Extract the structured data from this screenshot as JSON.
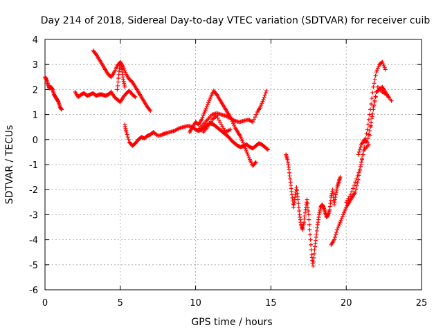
{
  "chart_data": {
    "type": "scatter",
    "title": "Day 214 of 2018, Sidereal Day-to-day VTEC variation (SDTVAR) for receiver cuib",
    "xlabel": "GPS time / hours",
    "ylabel": "SDTVAR / TECUs",
    "xlim": [
      0,
      25
    ],
    "ylim": [
      -6,
      4
    ],
    "x_ticks": [
      "0",
      "5",
      "10",
      "15",
      "20",
      "25"
    ],
    "y_ticks": [
      "-6",
      "-5",
      "-4",
      "-3",
      "-2",
      "-1",
      "0",
      "1",
      "2",
      "3",
      "4"
    ],
    "grid": true,
    "marker": "plus",
    "color": "#ff0000",
    "series": [
      {
        "x": [
          0.0,
          0.1,
          0.2,
          0.3,
          0.4,
          0.5,
          0.6,
          0.7,
          0.8,
          0.9,
          1.0,
          1.1
        ],
        "y": [
          2.5,
          2.4,
          2.2,
          2.05,
          2.1,
          2.0,
          1.8,
          1.7,
          1.6,
          1.5,
          1.3,
          1.2
        ]
      },
      {
        "x": [
          2.0,
          2.2,
          2.4,
          2.6,
          2.8,
          3.0,
          3.2,
          3.4,
          3.6,
          3.8,
          4.0,
          4.2,
          4.4,
          4.6,
          4.8,
          5.0,
          5.2,
          5.4,
          5.6,
          5.8,
          6.0
        ],
        "y": [
          1.9,
          1.7,
          1.8,
          1.85,
          1.75,
          1.8,
          1.85,
          1.75,
          1.8,
          1.8,
          1.75,
          1.8,
          1.9,
          1.7,
          1.6,
          1.5,
          1.7,
          1.85,
          1.95,
          1.8,
          1.7
        ]
      },
      {
        "x": [
          3.2,
          3.4,
          3.6,
          3.8,
          4.0,
          4.2,
          4.4,
          4.6,
          4.8,
          5.0,
          5.2,
          5.4,
          5.6,
          5.8,
          6.0,
          6.2,
          6.4,
          6.6,
          6.8,
          7.0
        ],
        "y": [
          3.55,
          3.4,
          3.2,
          3.0,
          2.8,
          2.6,
          2.5,
          2.7,
          2.95,
          3.1,
          2.9,
          2.6,
          2.4,
          2.3,
          2.1,
          1.9,
          1.7,
          1.5,
          1.3,
          1.15
        ]
      },
      {
        "x": [
          4.8,
          4.9,
          5.0,
          5.1,
          5.2,
          5.3
        ],
        "y": [
          2.0,
          2.6,
          3.1,
          2.8,
          2.4,
          2.1
        ]
      },
      {
        "x": [
          5.3,
          5.4,
          5.6,
          5.8,
          6.0,
          6.2,
          6.4,
          6.6,
          6.8,
          7.0,
          7.2,
          7.5,
          7.8,
          8.0,
          8.3,
          8.6,
          8.9,
          9.2,
          9.5,
          9.8,
          10.0,
          10.2,
          10.4,
          10.6,
          10.8,
          11.0,
          11.2,
          11.4,
          11.6,
          11.8,
          12.0,
          12.2,
          12.4,
          12.6,
          12.8,
          13.0,
          13.2,
          13.4,
          13.6,
          13.8,
          14.0,
          14.2,
          14.4,
          14.6,
          14.8
        ],
        "y": [
          0.6,
          0.3,
          -0.1,
          -0.25,
          -0.15,
          0.0,
          0.1,
          0.05,
          0.15,
          0.2,
          0.3,
          0.15,
          0.2,
          0.25,
          0.3,
          0.35,
          0.45,
          0.5,
          0.55,
          0.5,
          0.4,
          0.35,
          0.4,
          0.5,
          0.6,
          0.65,
          0.6,
          0.5,
          0.4,
          0.3,
          0.2,
          0.1,
          -0.05,
          -0.15,
          -0.25,
          -0.3,
          -0.25,
          -0.2,
          -0.3,
          -0.35,
          -0.25,
          -0.15,
          -0.2,
          -0.3,
          -0.4
        ]
      },
      {
        "x": [
          9.6,
          9.8,
          10.0,
          10.2,
          10.4,
          10.6,
          10.8,
          11.0,
          11.2,
          11.4,
          11.6,
          11.8,
          12.0,
          12.2,
          12.4,
          12.6,
          12.8,
          13.0,
          13.2,
          13.4,
          13.6,
          13.8,
          14.0
        ],
        "y": [
          0.3,
          0.5,
          0.7,
          0.6,
          0.8,
          1.1,
          1.4,
          1.7,
          1.95,
          1.8,
          1.6,
          1.4,
          1.2,
          1.0,
          0.8,
          0.5,
          0.3,
          0.1,
          -0.2,
          -0.5,
          -0.8,
          -1.05,
          -0.9
        ]
      },
      {
        "x": [
          10.2,
          10.5,
          10.8,
          11.1,
          11.4,
          11.7,
          12.0,
          12.3,
          12.6,
          12.9,
          13.2,
          13.5,
          13.8,
          14.1,
          14.3,
          14.5,
          14.7
        ],
        "y": [
          0.4,
          0.6,
          0.8,
          1.0,
          1.05,
          1.0,
          0.95,
          0.85,
          0.75,
          0.7,
          0.75,
          0.8,
          0.7,
          1.1,
          1.3,
          1.6,
          1.95
        ]
      },
      {
        "x": [
          10.5,
          10.8,
          11.1,
          11.4,
          11.7,
          12.0,
          12.3
        ],
        "y": [
          0.3,
          0.5,
          0.8,
          0.95,
          0.6,
          0.3,
          0.4
        ]
      },
      {
        "x": [
          16.0,
          16.1,
          16.2,
          16.3,
          16.4,
          16.5,
          16.6,
          16.7,
          16.8,
          16.9,
          17.0,
          17.1,
          17.2,
          17.3,
          17.4,
          17.5,
          17.6,
          17.7,
          17.8,
          17.9,
          18.0,
          18.1,
          18.2,
          18.3,
          18.4,
          18.5,
          18.6,
          18.7,
          18.8,
          18.9,
          19.0,
          19.1,
          19.2,
          19.3,
          19.4,
          19.5,
          19.6
        ],
        "y": [
          -0.6,
          -0.8,
          -1.2,
          -1.7,
          -2.2,
          -2.7,
          -2.3,
          -1.9,
          -2.4,
          -3.0,
          -3.4,
          -3.6,
          -3.3,
          -2.8,
          -2.4,
          -3.0,
          -3.8,
          -4.6,
          -5.05,
          -4.4,
          -3.9,
          -3.4,
          -3.0,
          -2.7,
          -2.6,
          -2.7,
          -2.9,
          -3.1,
          -3.0,
          -2.8,
          -2.3,
          -2.0,
          -2.6,
          -2.2,
          -1.9,
          -1.7,
          -1.5
        ]
      },
      {
        "x": [
          19.0,
          19.2,
          19.4,
          19.6,
          19.8,
          20.0,
          20.2,
          20.4,
          20.6,
          20.8,
          21.0,
          21.2,
          21.4,
          21.6,
          21.8,
          22.0,
          22.2,
          22.4,
          22.6
        ],
        "y": [
          -4.2,
          -4.0,
          -3.6,
          -3.3,
          -3.0,
          -2.7,
          -2.5,
          -2.3,
          -2.1,
          -1.6,
          -0.9,
          -0.3,
          0.4,
          1.2,
          2.1,
          2.7,
          3.0,
          3.1,
          2.8
        ]
      },
      {
        "x": [
          20.0,
          20.3,
          20.6,
          20.9,
          21.2,
          21.5,
          21.8,
          22.1,
          22.4,
          22.7,
          23.0
        ],
        "y": [
          -2.5,
          -2.2,
          -1.7,
          -1.2,
          -0.4,
          -0.2,
          1.3,
          2.1,
          1.9,
          1.8,
          1.55
        ]
      },
      {
        "x": [
          20.8,
          21.0,
          21.2,
          21.4,
          21.6,
          21.8,
          22.0,
          22.2,
          22.4,
          22.6,
          22.8
        ],
        "y": [
          -0.6,
          -0.2,
          0.0,
          -0.1,
          0.5,
          1.2,
          1.9,
          2.0,
          2.1,
          1.9,
          1.7
        ]
      }
    ]
  }
}
